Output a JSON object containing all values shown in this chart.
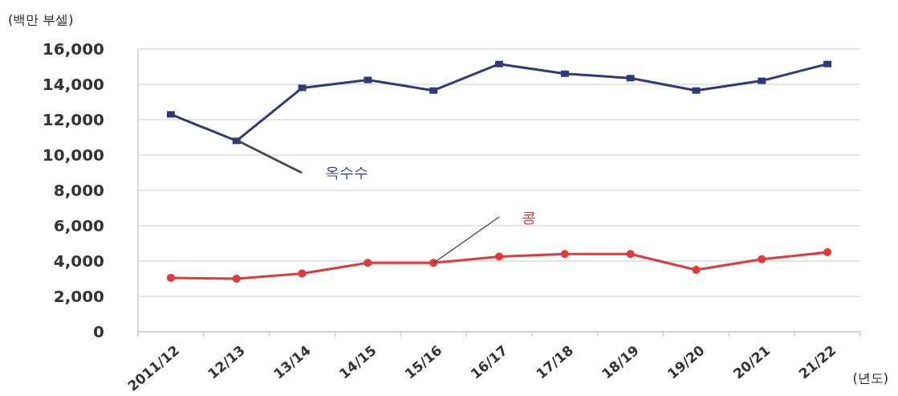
{
  "chart_data": {
    "type": "line",
    "ylabel": "(백만 부셀)",
    "xlabel": "(년도)",
    "categories": [
      "2011/12",
      "12/13",
      "13/14",
      "14/15",
      "15/16",
      "16/17",
      "17/18",
      "18/19",
      "19/20",
      "20/21",
      "21/22"
    ],
    "series": [
      {
        "name": "옥수수",
        "color": "#2e3a7a",
        "marker": "square",
        "values": [
          12300,
          10800,
          13800,
          14250,
          13650,
          15150,
          14600,
          14350,
          13650,
          14200,
          15150
        ]
      },
      {
        "name": "콩",
        "color": "#e03a3a",
        "marker": "circle",
        "values": [
          3050,
          3000,
          3300,
          3900,
          3900,
          4250,
          4400,
          4400,
          3500,
          4100,
          4500
        ]
      }
    ],
    "ylim": [
      0,
      16000
    ],
    "yticks": [
      {
        "value": 0,
        "label": "0"
      },
      {
        "value": 2000,
        "label": "2,000"
      },
      {
        "value": 4000,
        "label": "4,000"
      },
      {
        "value": 6000,
        "label": "6,000"
      },
      {
        "value": 8000,
        "label": "8,000"
      },
      {
        "value": 10000,
        "label": "10,000"
      },
      {
        "value": 12000,
        "label": "12,000"
      },
      {
        "value": 14000,
        "label": "14,000"
      },
      {
        "value": 16000,
        "label": "16,000"
      }
    ],
    "grid": "y"
  }
}
